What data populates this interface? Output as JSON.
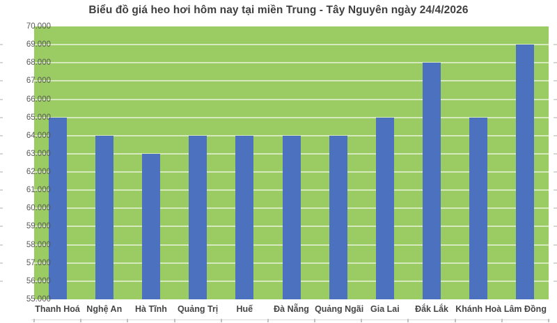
{
  "title": "Biểu đồ giá heo hơi hôm nay tại miền Trung - Tây Nguyên ngày 24/4/2026",
  "colors": {
    "bar": "#4C71BE",
    "plot_background": "#9BCB63",
    "gridline": "rgba(255,255,255,0.58)",
    "title_text": "#3f3f3f",
    "axis_label_text": "#595959",
    "category_label_text": "#454545"
  },
  "chart_data": {
    "type": "bar",
    "title": "Biểu đồ giá heo hơi hôm nay tại miền Trung - Tây Nguyên ngày 24/4/2026",
    "categories": [
      "Thanh Hoá",
      "Nghệ An",
      "Hà Tĩnh",
      "Quảng Trị",
      "Huế",
      "Đà Nẵng",
      "Quảng Ngãi",
      "Gia Lai",
      "Đắk Lắk",
      "Khánh Hoà",
      "Lâm Đồng"
    ],
    "values": [
      65000,
      64000,
      63000,
      64000,
      64000,
      64000,
      64000,
      65000,
      68000,
      65000,
      69000
    ],
    "xlabel": "",
    "ylabel": "",
    "ylim": [
      55000,
      70000
    ],
    "y_tick_step": 1000,
    "y_tick_labels": [
      "70.000",
      "69.000",
      "68.000",
      "67.000",
      "66.000",
      "65.000",
      "64.000",
      "63.000",
      "62.000",
      "61.000",
      "60.000",
      "59.000",
      "58.000",
      "57.000",
      "56.000",
      "55.000"
    ],
    "grid": "horizontal",
    "legend_position": "none"
  }
}
